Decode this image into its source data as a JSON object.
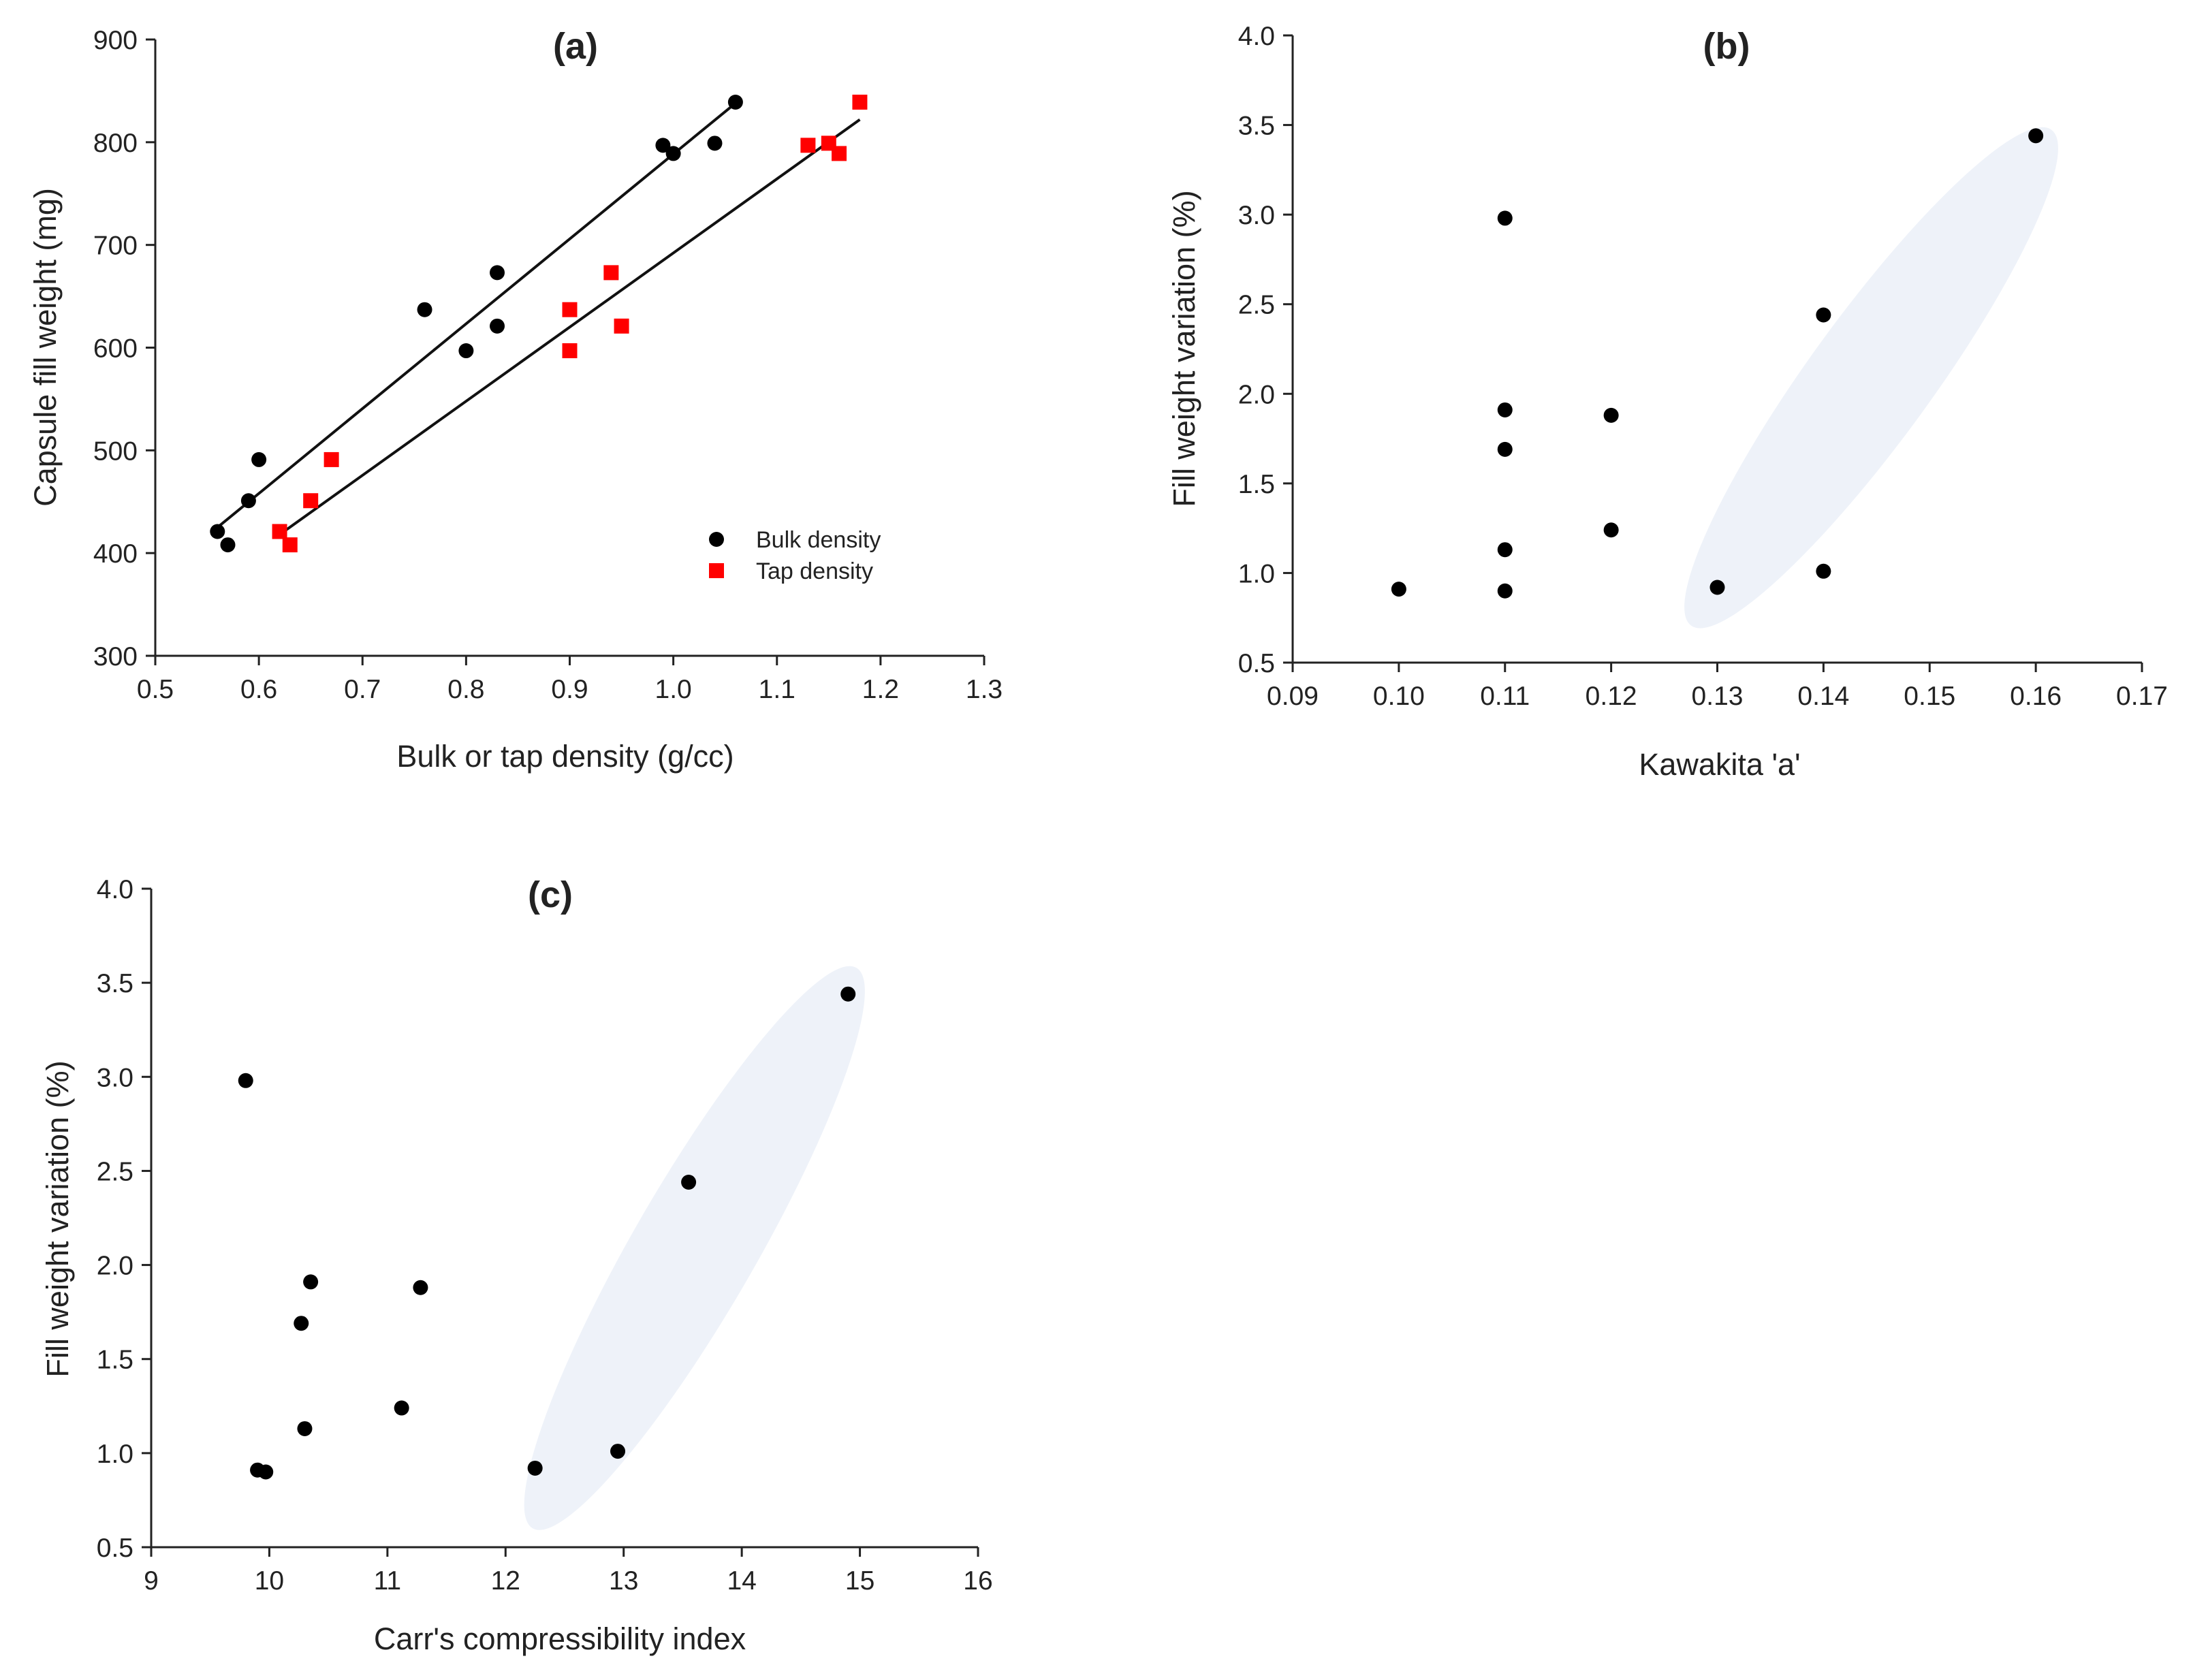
{
  "colors": {
    "bulk_marker": "#000000",
    "tap_marker": "#ff0000",
    "cluster_fill": "#eef2f9",
    "axis": "#222222"
  },
  "chart_data": [
    {
      "id": "a",
      "type": "scatter",
      "title": "(a)",
      "xlabel": "Bulk or tap density (g/cc)",
      "ylabel": "Capsule fill weight (mg)",
      "xlim": [
        0.5,
        1.3
      ],
      "ylim": [
        300,
        900
      ],
      "xticks": [
        "0.5",
        "0.6",
        "0.7",
        "0.8",
        "0.9",
        "1.0",
        "1.1",
        "1.2",
        "1.3"
      ],
      "yticks": [
        "300",
        "400",
        "500",
        "600",
        "700",
        "800",
        "900"
      ],
      "legend_position": "lower-right",
      "series": [
        {
          "name": "Bulk density",
          "marker": "circle",
          "x": [
            0.56,
            0.57,
            0.59,
            0.6,
            0.76,
            0.8,
            0.83,
            0.83,
            0.99,
            1.0,
            1.04,
            1.06
          ],
          "y": [
            421,
            408,
            451,
            491,
            637,
            597,
            621,
            673,
            797,
            789,
            799,
            839
          ],
          "fit": {
            "x": [
              0.56,
              1.06
            ],
            "y": [
              425,
              838
            ]
          }
        },
        {
          "name": "Tap density",
          "marker": "square",
          "x": [
            0.62,
            0.63,
            0.65,
            0.67,
            0.9,
            0.9,
            0.94,
            0.95,
            1.13,
            1.15,
            1.16,
            1.18
          ],
          "y": [
            421,
            408,
            451,
            491,
            637,
            597,
            673,
            621,
            797,
            799,
            789,
            839
          ],
          "fit": {
            "x": [
              0.62,
              1.18
            ],
            "y": [
              418,
              822
            ]
          }
        }
      ]
    },
    {
      "id": "b",
      "type": "scatter",
      "title": "(b)",
      "xlabel": "Kawakita 'a'",
      "ylabel": "Fill weight variation (%)",
      "xlim": [
        0.09,
        0.17
      ],
      "ylim": [
        0.5,
        4.0
      ],
      "xticks": [
        "0.09",
        "0.10",
        "0.11",
        "0.12",
        "0.13",
        "0.14",
        "0.15",
        "0.16",
        "0.17"
      ],
      "yticks": [
        "0.5",
        "1.0",
        "1.5",
        "2.0",
        "2.5",
        "3.0",
        "3.5",
        "4.0"
      ],
      "series": [
        {
          "name": "Fill weight variation",
          "marker": "circle",
          "x": [
            0.1,
            0.11,
            0.11,
            0.11,
            0.11,
            0.11,
            0.12,
            0.12,
            0.13,
            0.14,
            0.14,
            0.16
          ],
          "y": [
            0.91,
            0.9,
            1.13,
            1.69,
            1.91,
            2.98,
            1.24,
            1.88,
            0.92,
            1.01,
            2.44,
            3.44
          ]
        }
      ],
      "cluster_ellipse": {
        "center": [
          0.1445,
          2.09
        ],
        "semi_axes": [
          0.0058,
          1.71
        ],
        "rotation_deg": 36
      }
    },
    {
      "id": "c",
      "type": "scatter",
      "title": "(c)",
      "xlabel": "Carr's compressibility index",
      "ylabel": "Fill weight variation (%)",
      "xlim": [
        9,
        16
      ],
      "ylim": [
        0.5,
        4.0
      ],
      "xticks": [
        "9",
        "10",
        "11",
        "12",
        "13",
        "14",
        "15",
        "16"
      ],
      "yticks": [
        "0.5",
        "1.0",
        "1.5",
        "2.0",
        "2.5",
        "3.0",
        "3.5",
        "4.0"
      ],
      "series": [
        {
          "name": "Fill weight variation",
          "marker": "circle",
          "x": [
            9.8,
            9.9,
            9.97,
            10.27,
            10.3,
            10.35,
            11.12,
            11.28,
            12.25,
            12.95,
            13.55,
            14.9
          ],
          "y": [
            2.98,
            0.91,
            0.9,
            1.69,
            1.13,
            1.91,
            1.24,
            1.88,
            0.92,
            1.01,
            2.44,
            3.44
          ]
        }
      ],
      "cluster_ellipse": {
        "center": [
          13.6,
          2.09
        ],
        "semi_axes": [
          0.52,
          1.72
        ],
        "rotation_deg": 30
      }
    }
  ]
}
